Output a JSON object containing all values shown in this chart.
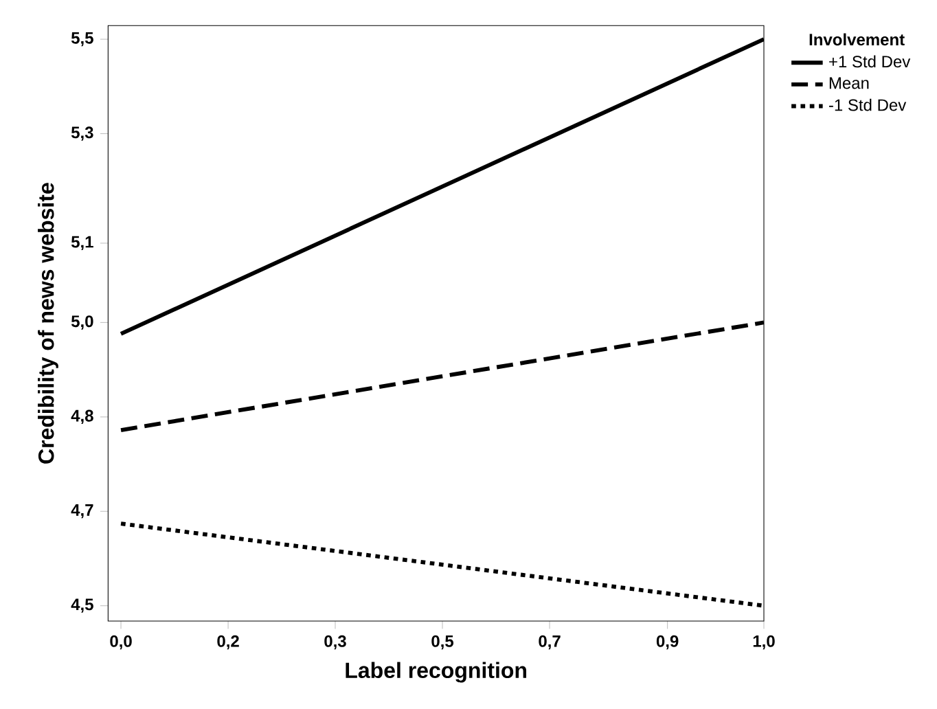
{
  "chart_data": {
    "type": "line",
    "xlabel": "Label recognition",
    "ylabel": "Credibility of news website",
    "legend_title": "Involvement",
    "x": [
      0.0,
      1.0
    ],
    "series": [
      {
        "name": "+1 Std Dev",
        "color": "#000000",
        "line_style": "solid",
        "values": [
          4.98,
          5.5
        ]
      },
      {
        "name": "Mean",
        "color": "#000000",
        "line_style": "dashed",
        "values": [
          4.81,
          5.0
        ]
      },
      {
        "name": "-1 Std Dev",
        "color": "#000000",
        "line_style": "dotted",
        "values": [
          4.645,
          4.5
        ]
      }
    ],
    "xlim": [
      -0.02,
      1.0
    ],
    "ylim": [
      4.473,
      5.524
    ],
    "xticks": [
      {
        "value": 0.0,
        "label": "0,0"
      },
      {
        "value": 0.1667,
        "label": "0,2"
      },
      {
        "value": 0.3333,
        "label": "0,3"
      },
      {
        "value": 0.5,
        "label": "0,5"
      },
      {
        "value": 0.6667,
        "label": "0,7"
      },
      {
        "value": 0.85,
        "label": "0,9"
      },
      {
        "value": 1.0,
        "label": "1,0"
      }
    ],
    "yticks": [
      {
        "value": 4.5,
        "label": "4,5"
      },
      {
        "value": 4.6667,
        "label": "4,7"
      },
      {
        "value": 4.8333,
        "label": "4,8"
      },
      {
        "value": 5.0,
        "label": "5,0"
      },
      {
        "value": 5.14,
        "label": "5,1"
      },
      {
        "value": 5.3333,
        "label": "5,3"
      },
      {
        "value": 5.5,
        "label": "5,5"
      }
    ],
    "grid": false,
    "legend": "top right",
    "marker": "none"
  }
}
